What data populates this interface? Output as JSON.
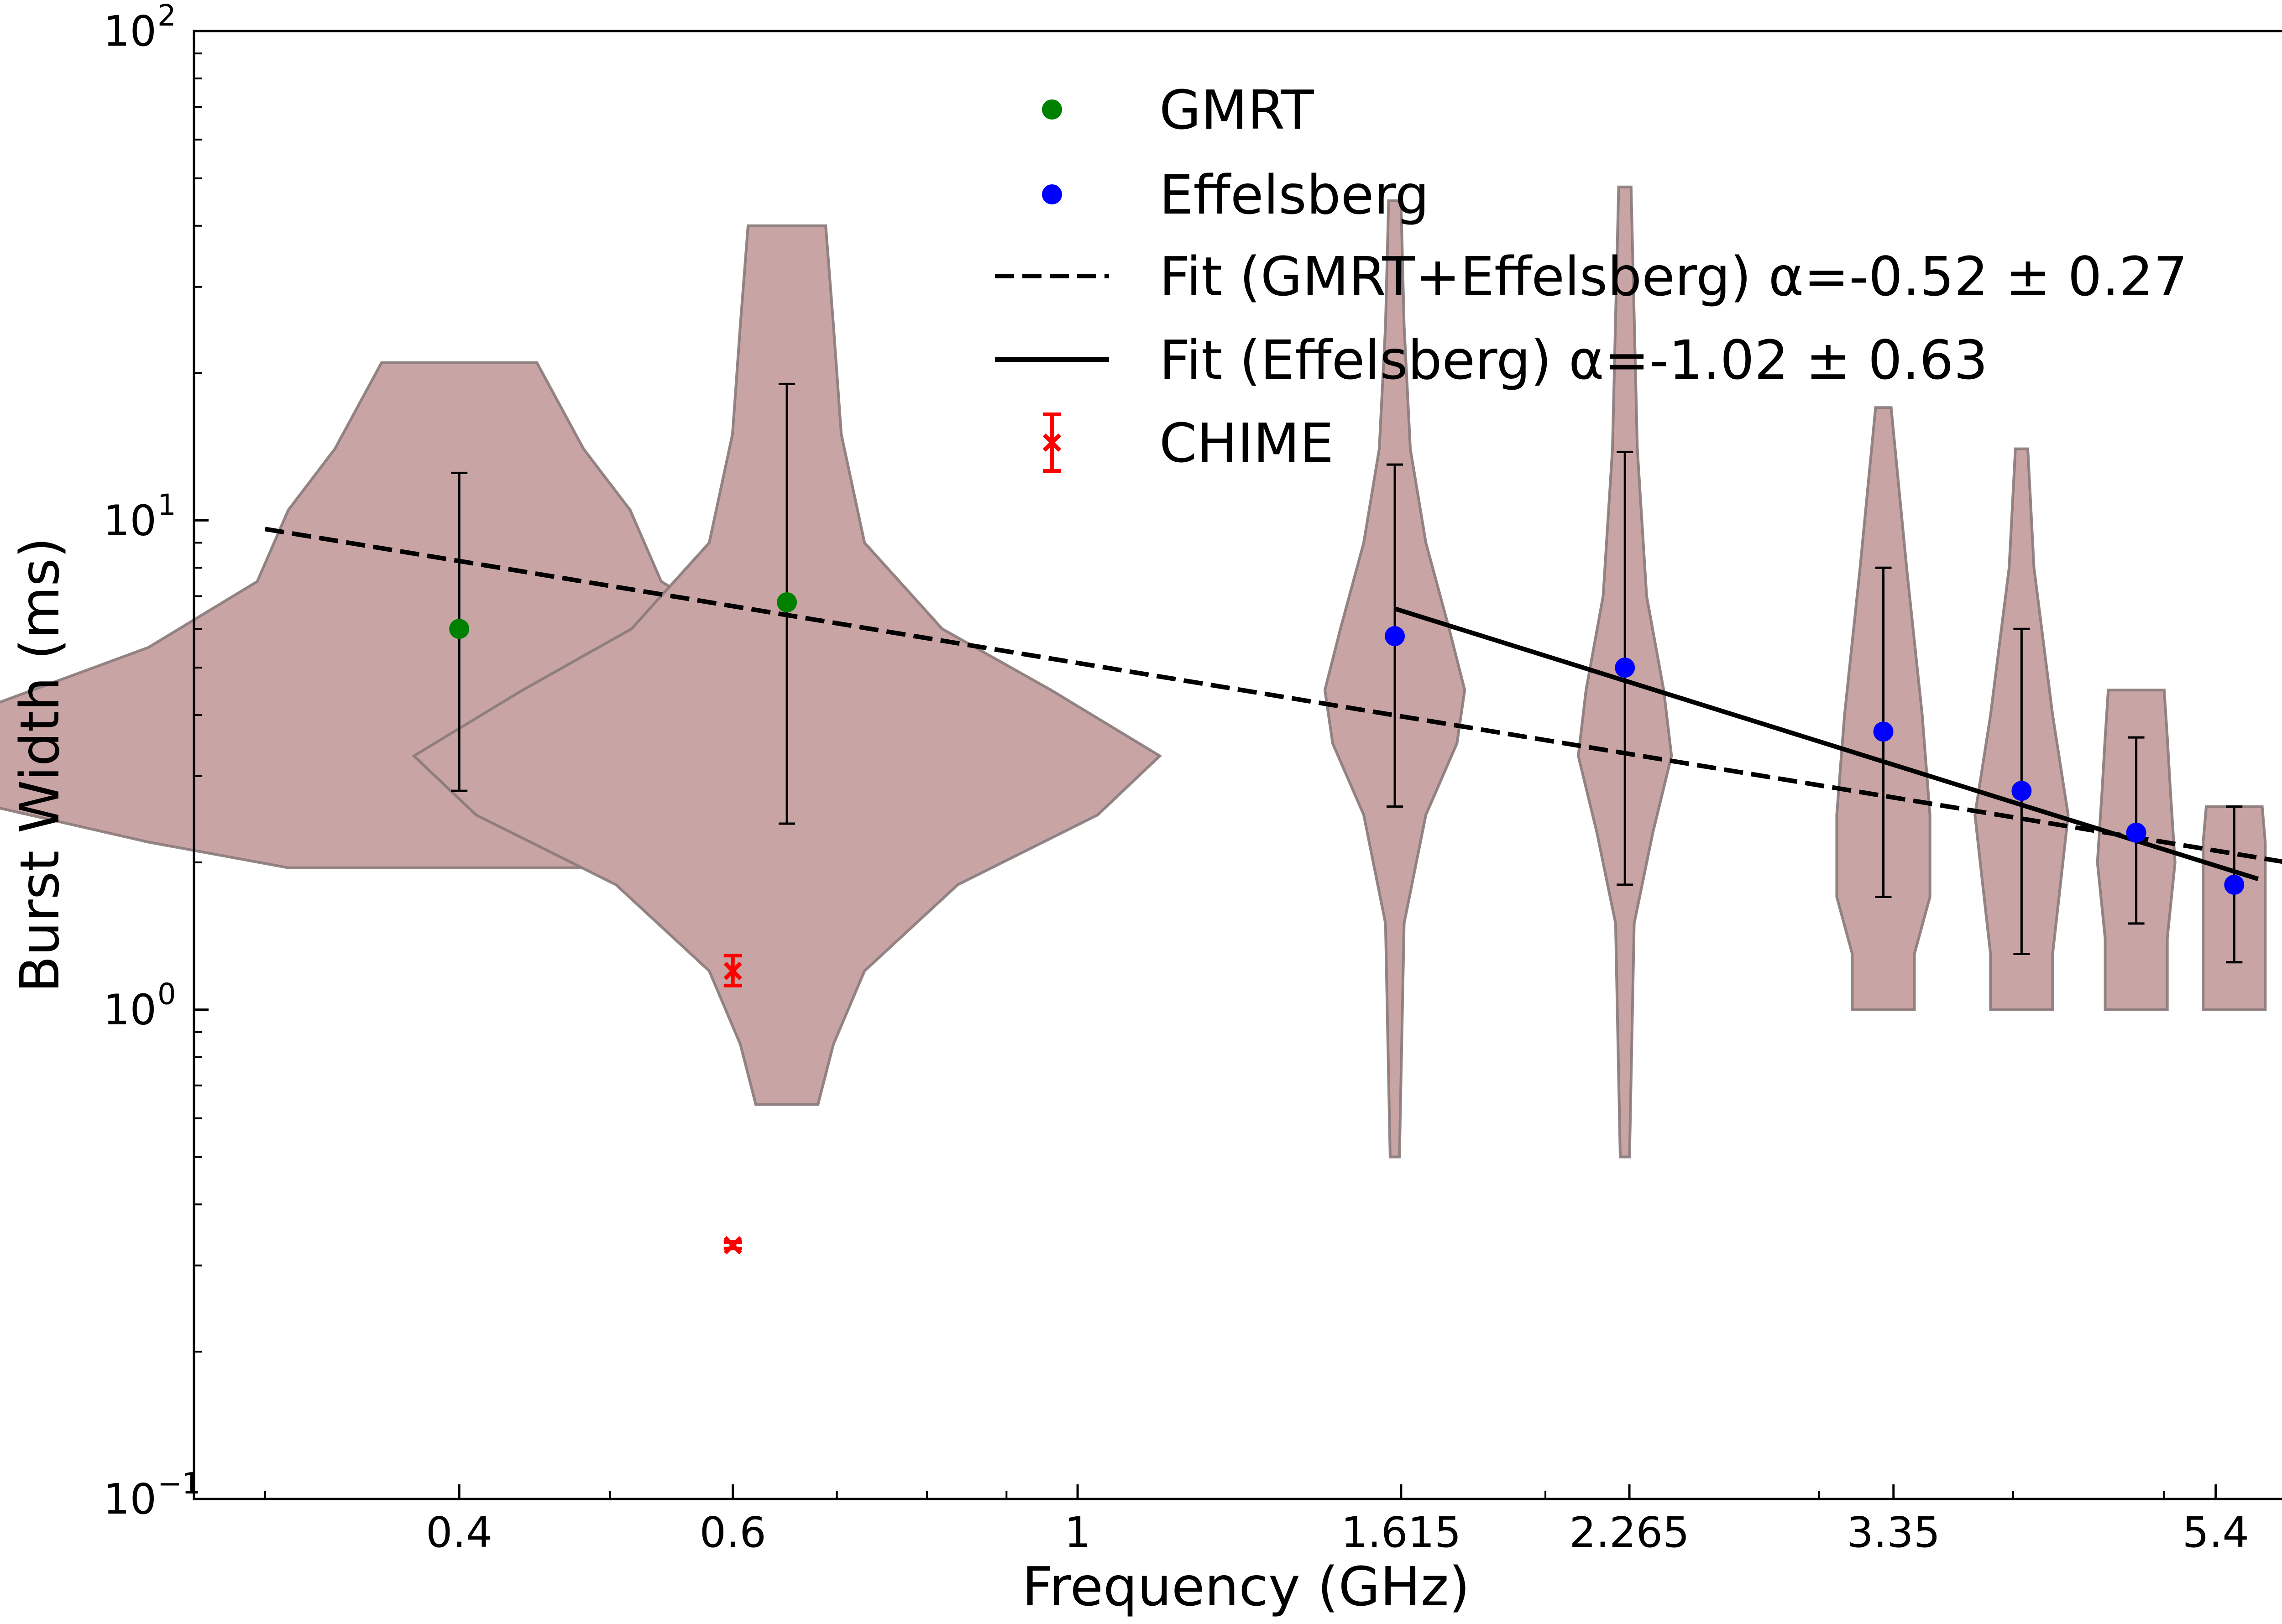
{
  "chart_data": {
    "type": "scatter",
    "title": "",
    "xlabel": "Frequency (GHz)",
    "ylabel": "Burst Width (ms)",
    "xscale": "log",
    "yscale": "log",
    "xlim": [
      0.27,
      6.1
    ],
    "ylim": [
      0.1,
      100
    ],
    "xticks": [
      {
        "value": 0.4,
        "label": "0.4"
      },
      {
        "value": 0.6,
        "label": "0.6"
      },
      {
        "value": 1.0,
        "label": "1"
      },
      {
        "value": 1.615,
        "label": "1.615"
      },
      {
        "value": 2.265,
        "label": "2.265"
      },
      {
        "value": 3.35,
        "label": "3.35"
      },
      {
        "value": 5.4,
        "label": "5.4"
      }
    ],
    "yticks": [
      {
        "value": 0.1,
        "base": "10",
        "exp": "−1"
      },
      {
        "value": 1,
        "base": "10",
        "exp": "0"
      },
      {
        "value": 10,
        "base": "10",
        "exp": "1"
      },
      {
        "value": 100,
        "base": "10",
        "exp": "2"
      }
    ],
    "legend_position": "top-center",
    "legend": [
      {
        "label": "GMRT",
        "kind": "dot",
        "color": "#008000"
      },
      {
        "label": "Effelsberg",
        "kind": "dot",
        "color": "#0000ff"
      },
      {
        "label": "Fit (GMRT+Effelsberg) α=-0.52 ± 0.27",
        "kind": "dashed",
        "color": "#000000"
      },
      {
        "label": "Fit (Effelsberg) α=-1.02 ± 0.63",
        "kind": "solid",
        "color": "#000000"
      },
      {
        "label": "CHIME",
        "kind": "cross",
        "color": "#ff0000"
      }
    ],
    "series": [
      {
        "name": "GMRT",
        "color": "#008000",
        "points": [
          {
            "x": 0.4,
            "y": 6.0,
            "err_low": 2.8,
            "err_high": 12.5
          },
          {
            "x": 0.65,
            "y": 6.8,
            "err_low": 2.4,
            "err_high": 19.0
          }
        ]
      },
      {
        "name": "Effelsberg",
        "color": "#0000ff",
        "points": [
          {
            "x": 1.6,
            "y": 5.8,
            "err_low": 2.6,
            "err_high": 13.0
          },
          {
            "x": 2.25,
            "y": 5.0,
            "err_low": 1.8,
            "err_high": 13.8
          },
          {
            "x": 3.3,
            "y": 3.7,
            "err_low": 1.7,
            "err_high": 8.0
          },
          {
            "x": 4.05,
            "y": 2.8,
            "err_low": 1.3,
            "err_high": 6.0
          },
          {
            "x": 4.8,
            "y": 2.3,
            "err_low": 1.5,
            "err_high": 3.6
          },
          {
            "x": 5.55,
            "y": 1.8,
            "err_low": 1.25,
            "err_high": 2.6
          }
        ]
      },
      {
        "name": "CHIME",
        "color": "#ff0000",
        "points": [
          {
            "x": 0.6,
            "y": 1.2,
            "err_low": 1.12,
            "err_high": 1.29
          },
          {
            "x": 0.6,
            "y": 0.33,
            "err_low": 0.325,
            "err_high": 0.335
          }
        ]
      }
    ],
    "fits": [
      {
        "name": "Fit (GMRT+Effelsberg)",
        "style": "dashed",
        "alpha": -0.52,
        "alpha_err": 0.27,
        "x": [
          0.3,
          6.0
        ],
        "y": [
          9.6,
          2.0
        ]
      },
      {
        "name": "Fit (Effelsberg)",
        "style": "solid",
        "alpha": -1.02,
        "alpha_err": 0.63,
        "x": [
          1.6,
          5.75
        ],
        "y": [
          6.6,
          1.85
        ]
      }
    ],
    "violins": {
      "color": "#c9a4a4",
      "items": [
        {
          "x": 0.4,
          "min": 1.95,
          "max": 21,
          "profile": [
            [
              1.95,
              0.11
            ],
            [
              2.2,
              0.2
            ],
            [
              2.6,
              0.3
            ],
            [
              3.0,
              0.34
            ],
            [
              3.4,
              0.35
            ],
            [
              4.2,
              0.3
            ],
            [
              5.5,
              0.2
            ],
            [
              7.5,
              0.13
            ],
            [
              10.5,
              0.11
            ],
            [
              14,
              0.08
            ],
            [
              21,
              0.05
            ]
          ]
        },
        {
          "x": 0.65,
          "min": 0.64,
          "max": 40,
          "profile": [
            [
              0.64,
              0.02
            ],
            [
              0.85,
              0.03
            ],
            [
              1.2,
              0.05
            ],
            [
              1.8,
              0.11
            ],
            [
              2.5,
              0.2
            ],
            [
              3.3,
              0.24
            ],
            [
              4.5,
              0.17
            ],
            [
              6,
              0.1
            ],
            [
              9,
              0.05
            ],
            [
              15,
              0.035
            ],
            [
              25,
              0.03
            ],
            [
              40,
              0.025
            ]
          ]
        },
        {
          "x": 1.6,
          "min": 0.5,
          "max": 45,
          "profile": [
            [
              0.5,
              0.003
            ],
            [
              1.5,
              0.006
            ],
            [
              2.5,
              0.02
            ],
            [
              3.5,
              0.04
            ],
            [
              4.5,
              0.045
            ],
            [
              6,
              0.035
            ],
            [
              9,
              0.02
            ],
            [
              14,
              0.01
            ],
            [
              25,
              0.006
            ],
            [
              45,
              0.004
            ]
          ]
        },
        {
          "x": 2.25,
          "min": 0.5,
          "max": 48,
          "profile": [
            [
              0.5,
              0.003
            ],
            [
              1.5,
              0.006
            ],
            [
              2.3,
              0.018
            ],
            [
              3.3,
              0.03
            ],
            [
              4.5,
              0.025
            ],
            [
              7,
              0.014
            ],
            [
              14,
              0.008
            ],
            [
              48,
              0.004
            ]
          ]
        },
        {
          "x": 3.3,
          "min": 1.0,
          "max": 17,
          "profile": [
            [
              1.0,
              0.02
            ],
            [
              1.3,
              0.02
            ],
            [
              1.7,
              0.03
            ],
            [
              2.5,
              0.03
            ],
            [
              4,
              0.025
            ],
            [
              8,
              0.015
            ],
            [
              17,
              0.005
            ]
          ]
        },
        {
          "x": 4.05,
          "min": 1.0,
          "max": 14,
          "profile": [
            [
              1.0,
              0.02
            ],
            [
              1.3,
              0.02
            ],
            [
              1.8,
              0.025
            ],
            [
              2.5,
              0.03
            ],
            [
              4,
              0.02
            ],
            [
              8,
              0.008
            ],
            [
              14,
              0.004
            ]
          ]
        },
        {
          "x": 4.8,
          "min": 1.0,
          "max": 4.5,
          "profile": [
            [
              1.0,
              0.02
            ],
            [
              1.4,
              0.02
            ],
            [
              2.0,
              0.025
            ],
            [
              2.8,
              0.022
            ],
            [
              3.6,
              0.02
            ],
            [
              4.5,
              0.018
            ]
          ]
        },
        {
          "x": 5.55,
          "min": 1.0,
          "max": 2.6,
          "profile": [
            [
              1.0,
              0.02
            ],
            [
              1.3,
              0.02
            ],
            [
              1.8,
              0.02
            ],
            [
              2.2,
              0.02
            ],
            [
              2.6,
              0.018
            ]
          ]
        }
      ]
    }
  }
}
